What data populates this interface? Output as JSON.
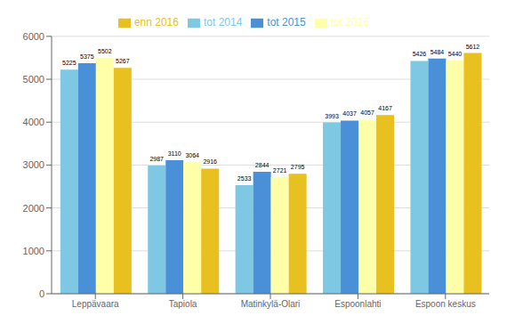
{
  "chart_data": {
    "type": "bar",
    "categories": [
      "Leppävaara",
      "Tapiola",
      "Matinkylä-Olari",
      "Espoonlahti",
      "Espoon keskus"
    ],
    "series": [
      {
        "name": "tot 2014",
        "color": "#7EC8E3",
        "values": [
          5225,
          2987,
          2533,
          3993,
          5426
        ]
      },
      {
        "name": "tot 2015",
        "color": "#4A90D9",
        "values": [
          5375,
          3110,
          2844,
          4037,
          5484
        ]
      },
      {
        "name": "tot 2016",
        "color": "#FFFFAA",
        "values": [
          5502,
          3064,
          2721,
          4057,
          5440
        ]
      },
      {
        "name": "enn 2016",
        "color": "#E8C020",
        "values": [
          5267,
          2916,
          2795,
          4167,
          5612
        ]
      }
    ],
    "ylim": [
      0,
      6000
    ],
    "yticks": [
      0,
      1000,
      2000,
      3000,
      4000,
      5000,
      6000
    ],
    "grid": true,
    "legend": "top",
    "data_labels": true
  }
}
